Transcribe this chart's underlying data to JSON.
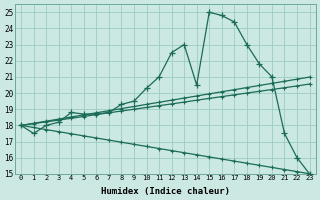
{
  "background_color": "#cce8e2",
  "grid_color": "#9cccc4",
  "line_color": "#1a6b58",
  "xlabel": "Humidex (Indice chaleur)",
  "xlim": [
    -0.5,
    23.5
  ],
  "ylim": [
    15,
    25.5
  ],
  "xticks": [
    0,
    1,
    2,
    3,
    4,
    5,
    6,
    7,
    8,
    9,
    10,
    11,
    12,
    13,
    14,
    15,
    16,
    17,
    18,
    19,
    20,
    21,
    22,
    23
  ],
  "yticks": [
    15,
    16,
    17,
    18,
    19,
    20,
    21,
    22,
    23,
    24,
    25
  ],
  "line1_y": [
    18,
    17.5,
    18,
    18.2,
    18.8,
    18.7,
    18.7,
    18.8,
    19.3,
    19.5,
    20.3,
    21.0,
    22.5,
    23.0,
    20.5,
    25.0,
    24.8,
    24.4,
    23.0,
    21.8,
    21.0,
    17.5,
    16.0,
    15.0
  ],
  "line2_y": [
    18,
    18.13,
    18.26,
    18.39,
    18.52,
    18.65,
    18.78,
    18.91,
    19.04,
    19.17,
    19.3,
    19.43,
    19.56,
    19.69,
    19.82,
    19.95,
    20.08,
    20.21,
    20.34,
    20.47,
    20.6,
    20.73,
    20.86,
    20.99
  ],
  "line3_y": [
    18,
    18.11,
    18.22,
    18.33,
    18.44,
    18.55,
    18.67,
    18.78,
    18.89,
    19.0,
    19.11,
    19.22,
    19.33,
    19.44,
    19.56,
    19.67,
    19.78,
    19.89,
    20.0,
    20.11,
    20.22,
    20.33,
    20.44,
    20.56
  ],
  "line4_y": [
    18,
    17.87,
    17.74,
    17.61,
    17.48,
    17.35,
    17.22,
    17.09,
    16.96,
    16.83,
    16.7,
    16.57,
    16.44,
    16.31,
    16.18,
    16.05,
    15.92,
    15.79,
    15.66,
    15.53,
    15.4,
    15.27,
    15.14,
    15.01
  ]
}
